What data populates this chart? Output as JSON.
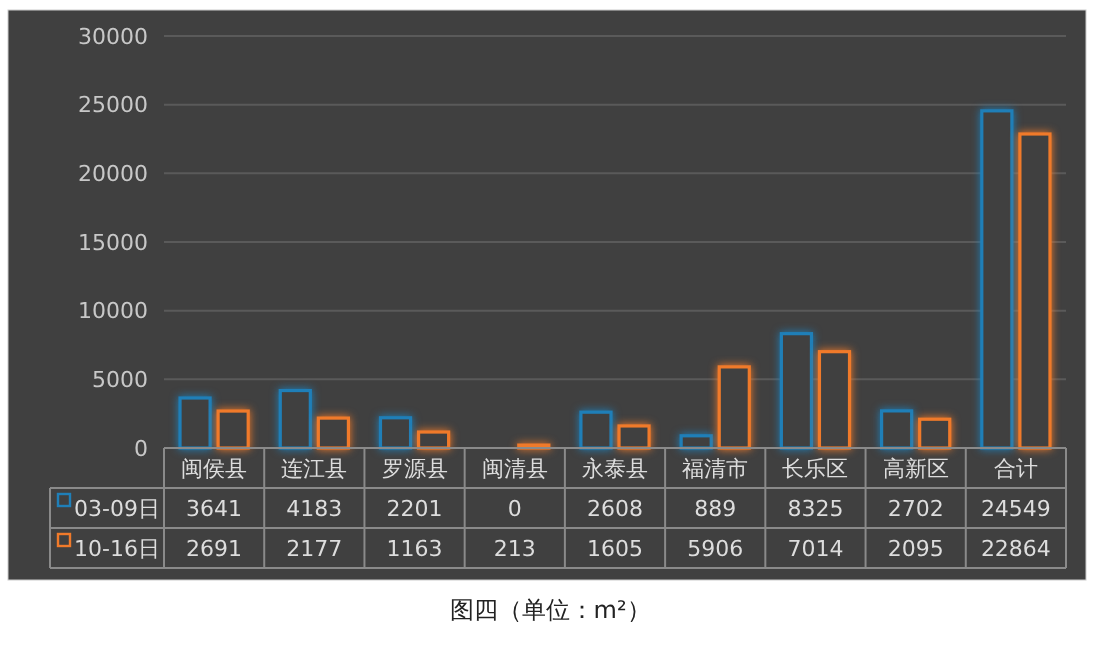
{
  "chart_data": {
    "type": "bar",
    "categories": [
      "闽侯县",
      "连江县",
      "罗源县",
      "闽清县",
      "永泰县",
      "福清市",
      "长乐区",
      "高新区",
      "合计"
    ],
    "series": [
      {
        "name": "03-09日",
        "color": "#1f7fb8",
        "values": [
          3641,
          4183,
          2201,
          0,
          2608,
          889,
          8325,
          2702,
          24549
        ]
      },
      {
        "name": "10-16日",
        "color": "#f07a2a",
        "values": [
          2691,
          2177,
          1163,
          213,
          1605,
          5906,
          7014,
          2095,
          22864
        ]
      }
    ],
    "ylim": [
      0,
      30000
    ],
    "yticks": [
      0,
      5000,
      10000,
      15000,
      20000,
      25000,
      30000
    ],
    "grid": "y",
    "legend": "bottom",
    "data_labels": true,
    "annotations": [
      "图四（单位：m²）"
    ]
  }
}
